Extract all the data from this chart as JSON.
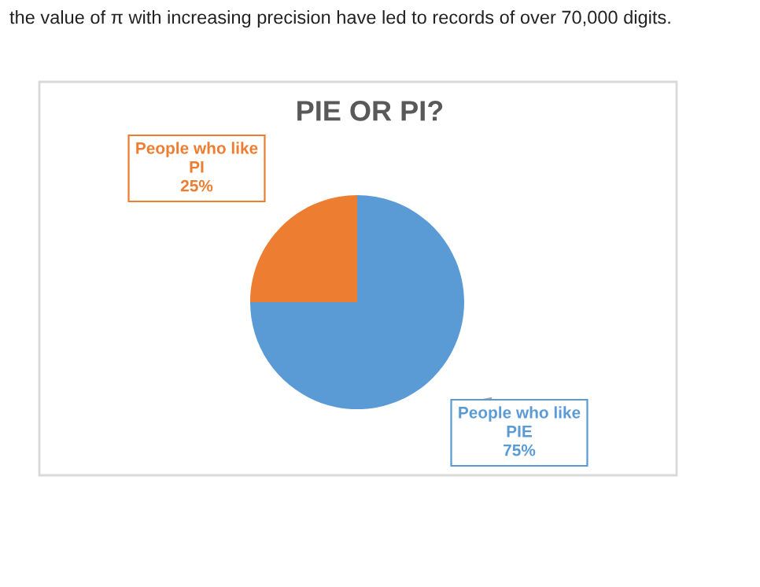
{
  "chart_data": {
    "type": "pie",
    "title": "PIE OR PI?",
    "categories": [
      "People who like\nPI",
      "People who like\nPIE"
    ],
    "values": [
      25,
      75
    ],
    "value_labels": [
      "25%",
      "75%"
    ],
    "colors": [
      "#ed7d31",
      "#5b9bd5"
    ],
    "legend": false,
    "annotations": [
      "the value of π with increasing precision have led to records of over 70,000 digits."
    ]
  }
}
